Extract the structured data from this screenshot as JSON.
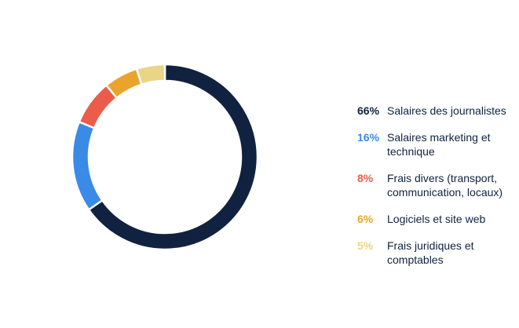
{
  "colors": {
    "background": "#ffffff",
    "text": "#0f2340"
  },
  "chart_data": {
    "type": "pie",
    "variant": "donut",
    "title": "",
    "legend_position": "right",
    "slices": [
      {
        "name": "Salaires des journalistes",
        "value": 66,
        "pct_label": "66%",
        "color": "#102240"
      },
      {
        "name": "Salaires marketing et technique",
        "value": 16,
        "pct_label": "16%",
        "color": "#3a8be8"
      },
      {
        "name": "Frais divers (transport, communication, locaux)",
        "value": 8,
        "pct_label": "8%",
        "color": "#ec5c4b"
      },
      {
        "name": "Logiciels et site web",
        "value": 6,
        "pct_label": "6%",
        "color": "#eaa42c"
      },
      {
        "name": "Frais juridiques et comptables",
        "value": 5,
        "pct_label": "5%",
        "color": "#ead486"
      }
    ]
  }
}
